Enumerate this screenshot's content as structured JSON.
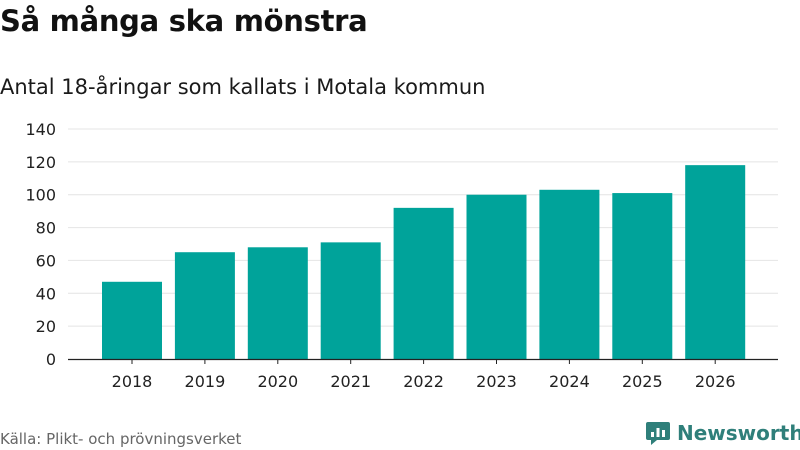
{
  "title": "Så många ska mönstra",
  "subtitle": "Antal 18-åringar som kallats i Motala kommun",
  "source": "Källa: Plikt- och prövningsverket",
  "brand": {
    "name": "Newsworthy",
    "icon": "newsworthy-logo-icon"
  },
  "colors": {
    "bar": "#00a39a",
    "grid": "#e4e4e4",
    "axis": "#222222",
    "brand": "#2f7f7a"
  },
  "chart_data": {
    "type": "bar",
    "categories": [
      "2018",
      "2019",
      "2020",
      "2021",
      "2022",
      "2023",
      "2024",
      "2025",
      "2026"
    ],
    "values": [
      47,
      65,
      68,
      71,
      92,
      100,
      103,
      101,
      118
    ],
    "yticks": [
      0,
      20,
      40,
      60,
      80,
      100,
      120,
      140
    ],
    "ylim": [
      0,
      140
    ],
    "grid": true
  }
}
